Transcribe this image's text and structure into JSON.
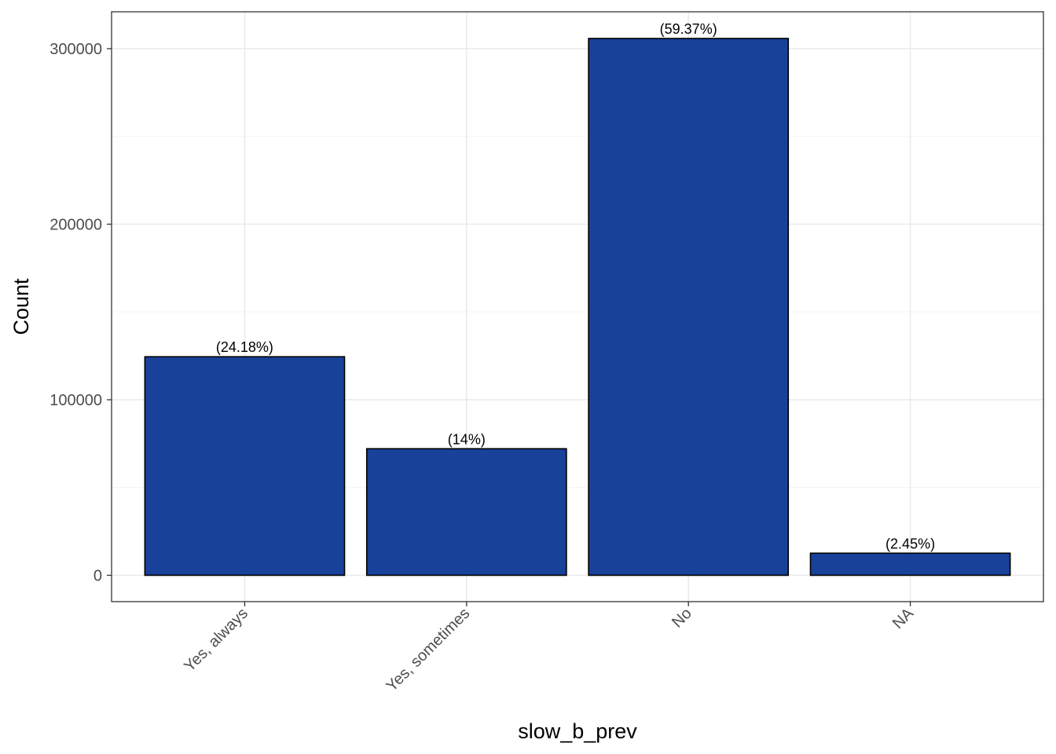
{
  "chart_data": {
    "type": "bar",
    "xlabel": "slow_b_prev",
    "ylabel": "Count",
    "categories": [
      "Yes, always",
      "Yes, sometimes",
      "No",
      "NA"
    ],
    "values": [
      124500,
      72100,
      305800,
      12600
    ],
    "labels": [
      "(24.18%)",
      "(14%)",
      "(59.37%)",
      "(2.45%)"
    ],
    "ylim": [
      -15000,
      321000
    ],
    "yticks": [
      0,
      100000,
      200000,
      300000
    ],
    "ytick_labels": [
      "0",
      "100000",
      "200000",
      "300000"
    ],
    "grid": true,
    "colors": {
      "bar_fill": "#18419A",
      "bar_stroke": "#000000",
      "grid_major": "#EBEBEB",
      "grid_minor": "#F5F5F5",
      "panel_border": "#333333"
    }
  }
}
